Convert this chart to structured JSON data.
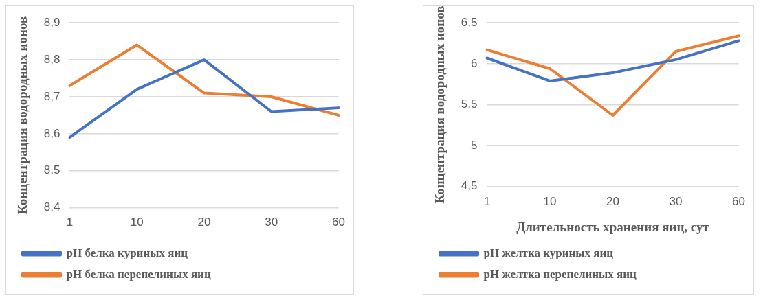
{
  "chart_data": [
    {
      "type": "line",
      "ylabel": "Концентрация водородных ионов",
      "categories": [
        "1",
        "10",
        "20",
        "30",
        "60"
      ],
      "series": [
        {
          "name": "pH белка куриных яиц",
          "color": "#4472c4",
          "values": [
            8.59,
            8.72,
            8.8,
            8.66,
            8.67
          ]
        },
        {
          "name": "pH белка перепелиных яиц",
          "color": "#ed7d31",
          "values": [
            8.73,
            8.84,
            8.71,
            8.7,
            8.65
          ]
        }
      ],
      "ylim": [
        8.4,
        8.9
      ],
      "yticks": [
        {
          "value": 8.4,
          "label": "8,4"
        },
        {
          "value": 8.5,
          "label": "8,5"
        },
        {
          "value": 8.6,
          "label": "8,6"
        },
        {
          "value": 8.7,
          "label": "8,7"
        },
        {
          "value": 8.8,
          "label": "8,8"
        },
        {
          "value": 8.9,
          "label": "8,9"
        }
      ],
      "grid": "y",
      "legend": "bottom",
      "marker": "none",
      "line_style": "solid"
    },
    {
      "type": "line",
      "ylabel": "Концентрация водородных ионов",
      "xlabel": "Длительность хранения яиц, сут",
      "categories": [
        "1",
        "10",
        "20",
        "30",
        "60"
      ],
      "series": [
        {
          "name": "pH желтка куриных яиц",
          "color": "#4472c4",
          "values": [
            6.07,
            5.79,
            5.89,
            6.05,
            6.28
          ]
        },
        {
          "name": "pH желтка перепелиных яиц",
          "color": "#ed7d31",
          "values": [
            6.17,
            5.94,
            5.37,
            6.15,
            6.34
          ]
        }
      ],
      "ylim": [
        4.5,
        6.5
      ],
      "yticks": [
        {
          "value": 4.5,
          "label": "4,5"
        },
        5,
        {
          "value": 5.5,
          "label": "5,5"
        },
        6,
        {
          "value": 6.5,
          "label": "6,5"
        }
      ],
      "grid": "y",
      "legend": "bottom",
      "marker": "none",
      "line_style": "solid"
    }
  ]
}
